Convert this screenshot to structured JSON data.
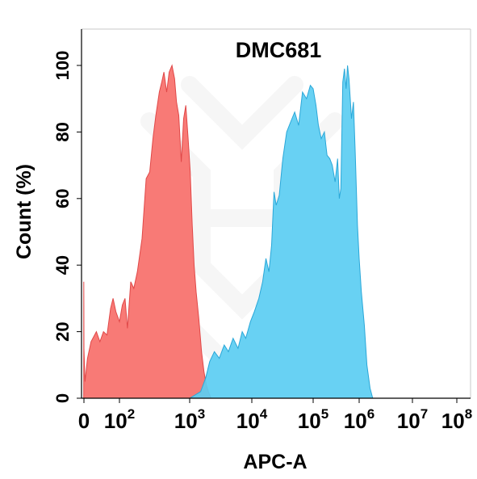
{
  "chart_data": {
    "type": "area",
    "title": "DMC681",
    "xlabel": "APC-A",
    "ylabel": "Count  (%)",
    "x_scale": "biexponential",
    "xlim": [
      -50,
      100000000
    ],
    "ylim": [
      0,
      105
    ],
    "yticks": [
      {
        "value": 0,
        "label": "0"
      },
      {
        "value": 20,
        "label": "20"
      },
      {
        "value": 40,
        "label": "40"
      },
      {
        "value": 60,
        "label": "60"
      },
      {
        "value": 80,
        "label": "80"
      },
      {
        "value": 100,
        "label": "100"
      }
    ],
    "xticks": [
      {
        "value": 0,
        "base": "0",
        "exp": ""
      },
      {
        "value": 100,
        "base": "10",
        "exp": "2"
      },
      {
        "value": 1000,
        "base": "10",
        "exp": "3"
      },
      {
        "value": 10000,
        "base": "10",
        "exp": "4"
      },
      {
        "value": 100000,
        "base": "10",
        "exp": "5"
      },
      {
        "value": 1000000,
        "base": "10",
        "exp": "6"
      },
      {
        "value": 10000000,
        "base": "10",
        "exp": "7"
      },
      {
        "value": 100000000,
        "base": "10",
        "exp": "8"
      }
    ],
    "grid": false,
    "legend": "none",
    "series": [
      {
        "color": "#f87a76",
        "edge": "#e04848",
        "points": [
          [
            -5,
            0
          ],
          [
            -4,
            35
          ],
          [
            -2,
            28
          ],
          [
            0,
            15
          ],
          [
            3,
            5
          ],
          [
            10,
            12
          ],
          [
            20,
            17
          ],
          [
            35,
            20
          ],
          [
            45,
            17
          ],
          [
            55,
            20
          ],
          [
            65,
            19
          ],
          [
            75,
            27
          ],
          [
            82,
            30
          ],
          [
            90,
            26
          ],
          [
            100,
            23
          ],
          [
            110,
            28
          ],
          [
            120,
            30
          ],
          [
            130,
            21
          ],
          [
            145,
            35
          ],
          [
            160,
            33
          ],
          [
            180,
            38
          ],
          [
            210,
            48
          ],
          [
            240,
            66
          ],
          [
            270,
            68
          ],
          [
            300,
            78
          ],
          [
            330,
            85
          ],
          [
            370,
            92
          ],
          [
            400,
            95
          ],
          [
            430,
            98
          ],
          [
            470,
            92
          ],
          [
            510,
            98
          ],
          [
            560,
            100
          ],
          [
            610,
            96
          ],
          [
            650,
            89
          ],
          [
            700,
            85
          ],
          [
            760,
            71
          ],
          [
            820,
            84
          ],
          [
            880,
            88
          ],
          [
            950,
            78
          ],
          [
            1020,
            68
          ],
          [
            1100,
            52
          ],
          [
            1180,
            40
          ],
          [
            1270,
            32
          ],
          [
            1400,
            24
          ],
          [
            1550,
            14
          ],
          [
            1700,
            8
          ],
          [
            1850,
            4
          ],
          [
            2000,
            2
          ],
          [
            2200,
            0
          ]
        ]
      },
      {
        "color": "#5bcdf2",
        "edge": "#2aa7d8",
        "points": [
          [
            1000,
            0
          ],
          [
            1500,
            2
          ],
          [
            1800,
            6
          ],
          [
            2100,
            11
          ],
          [
            2500,
            14
          ],
          [
            3000,
            12
          ],
          [
            3600,
            16
          ],
          [
            4200,
            14
          ],
          [
            5000,
            18
          ],
          [
            6000,
            15
          ],
          [
            7000,
            20
          ],
          [
            8000,
            18
          ],
          [
            9500,
            23
          ],
          [
            11000,
            26
          ],
          [
            13000,
            30
          ],
          [
            15000,
            35
          ],
          [
            17000,
            42
          ],
          [
            19000,
            38
          ],
          [
            21000,
            46
          ],
          [
            23000,
            62
          ],
          [
            25000,
            58
          ],
          [
            28000,
            61
          ],
          [
            32000,
            72
          ],
          [
            37000,
            80
          ],
          [
            43000,
            83
          ],
          [
            50000,
            86
          ],
          [
            58000,
            82
          ],
          [
            67000,
            92
          ],
          [
            78000,
            90
          ],
          [
            90000,
            94
          ],
          [
            100000,
            93
          ],
          [
            115000,
            88
          ],
          [
            130000,
            82
          ],
          [
            150000,
            78
          ],
          [
            175000,
            80
          ],
          [
            200000,
            73
          ],
          [
            230000,
            72
          ],
          [
            260000,
            70
          ],
          [
            300000,
            65
          ],
          [
            340000,
            72
          ],
          [
            370000,
            60
          ],
          [
            400000,
            63
          ],
          [
            440000,
            95
          ],
          [
            480000,
            99
          ],
          [
            520000,
            93
          ],
          [
            560000,
            100
          ],
          [
            600000,
            96
          ],
          [
            680000,
            84
          ],
          [
            750000,
            89
          ],
          [
            820000,
            74
          ],
          [
            920000,
            52
          ],
          [
            1000000,
            42
          ],
          [
            1100000,
            32
          ],
          [
            1250000,
            22
          ],
          [
            1400000,
            10
          ],
          [
            1600000,
            3
          ],
          [
            1800000,
            0
          ]
        ]
      }
    ]
  }
}
